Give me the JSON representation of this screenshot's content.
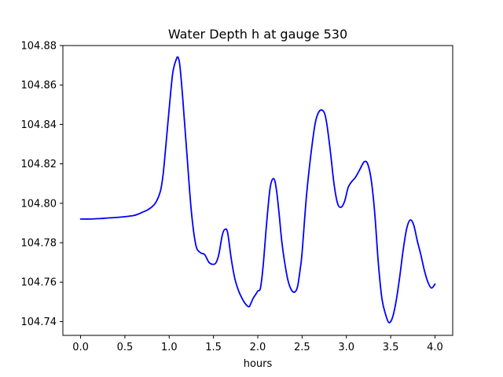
{
  "chart_data": {
    "type": "line",
    "title": "Water Depth h at gauge 530",
    "xlabel": "hours",
    "ylabel": "",
    "xlim": [
      -0.2,
      4.2
    ],
    "ylim": [
      104.733,
      104.88
    ],
    "grid": false,
    "line_color": "#0000ff",
    "x_ticks": [
      {
        "value": 0.0,
        "label": "0.0"
      },
      {
        "value": 0.5,
        "label": "0.5"
      },
      {
        "value": 1.0,
        "label": "1.0"
      },
      {
        "value": 1.5,
        "label": "1.5"
      },
      {
        "value": 2.0,
        "label": "2.0"
      },
      {
        "value": 2.5,
        "label": "2.5"
      },
      {
        "value": 3.0,
        "label": "3.0"
      },
      {
        "value": 3.5,
        "label": "3.5"
      },
      {
        "value": 4.0,
        "label": "4.0"
      }
    ],
    "y_ticks": [
      {
        "value": 104.74,
        "label": "104.74"
      },
      {
        "value": 104.76,
        "label": "104.76"
      },
      {
        "value": 104.78,
        "label": "104.78"
      },
      {
        "value": 104.8,
        "label": "104.80"
      },
      {
        "value": 104.82,
        "label": "104.82"
      },
      {
        "value": 104.84,
        "label": "104.84"
      },
      {
        "value": 104.86,
        "label": "104.86"
      },
      {
        "value": 104.88,
        "label": "104.88"
      }
    ],
    "series": [
      {
        "x": [
          0.0,
          0.1,
          0.2,
          0.3,
          0.4,
          0.5,
          0.6,
          0.65,
          0.7,
          0.75,
          0.8,
          0.85,
          0.9,
          0.93,
          0.96,
          1.0,
          1.04,
          1.08,
          1.1,
          1.12,
          1.15,
          1.2,
          1.25,
          1.3,
          1.35,
          1.4,
          1.45,
          1.5,
          1.53,
          1.56,
          1.6,
          1.63,
          1.66,
          1.7,
          1.74,
          1.78,
          1.82,
          1.86,
          1.9,
          1.92,
          1.95,
          1.98,
          2.0,
          2.03,
          2.06,
          2.1,
          2.14,
          2.18,
          2.21,
          2.24,
          2.27,
          2.3,
          2.34,
          2.38,
          2.42,
          2.45,
          2.48,
          2.5,
          2.55,
          2.6,
          2.65,
          2.7,
          2.75,
          2.78,
          2.82,
          2.86,
          2.9,
          2.94,
          2.98,
          3.02,
          3.06,
          3.1,
          3.15,
          3.2,
          3.24,
          3.28,
          3.32,
          3.36,
          3.4,
          3.44,
          3.48,
          3.52,
          3.56,
          3.6,
          3.64,
          3.68,
          3.72,
          3.76,
          3.8,
          3.84,
          3.88,
          3.92,
          3.96,
          4.0
        ],
        "y": [
          104.792,
          104.792,
          104.7922,
          104.7925,
          104.7928,
          104.7932,
          104.7938,
          104.7945,
          104.7955,
          104.7965,
          104.798,
          104.8005,
          104.806,
          104.814,
          104.828,
          104.848,
          104.866,
          104.873,
          104.874,
          104.87,
          104.855,
          104.825,
          104.796,
          104.779,
          104.775,
          104.774,
          104.77,
          104.769,
          104.77,
          104.774,
          104.784,
          104.7868,
          104.785,
          104.772,
          104.762,
          104.756,
          104.752,
          104.749,
          104.7475,
          104.749,
          104.752,
          104.754,
          104.7555,
          104.757,
          104.768,
          104.79,
          104.808,
          104.8125,
          104.807,
          104.795,
          104.781,
          104.771,
          104.761,
          104.756,
          104.755,
          104.758,
          104.767,
          104.775,
          104.804,
          104.825,
          104.841,
          104.847,
          104.846,
          104.84,
          104.826,
          104.81,
          104.8,
          104.798,
          104.801,
          104.808,
          104.811,
          104.813,
          104.817,
          104.821,
          104.82,
          104.812,
          104.795,
          104.77,
          104.752,
          104.744,
          104.7395,
          104.742,
          104.75,
          104.762,
          104.776,
          104.787,
          104.7915,
          104.789,
          104.781,
          104.774,
          104.766,
          104.76,
          104.757,
          104.759
        ]
      }
    ]
  }
}
